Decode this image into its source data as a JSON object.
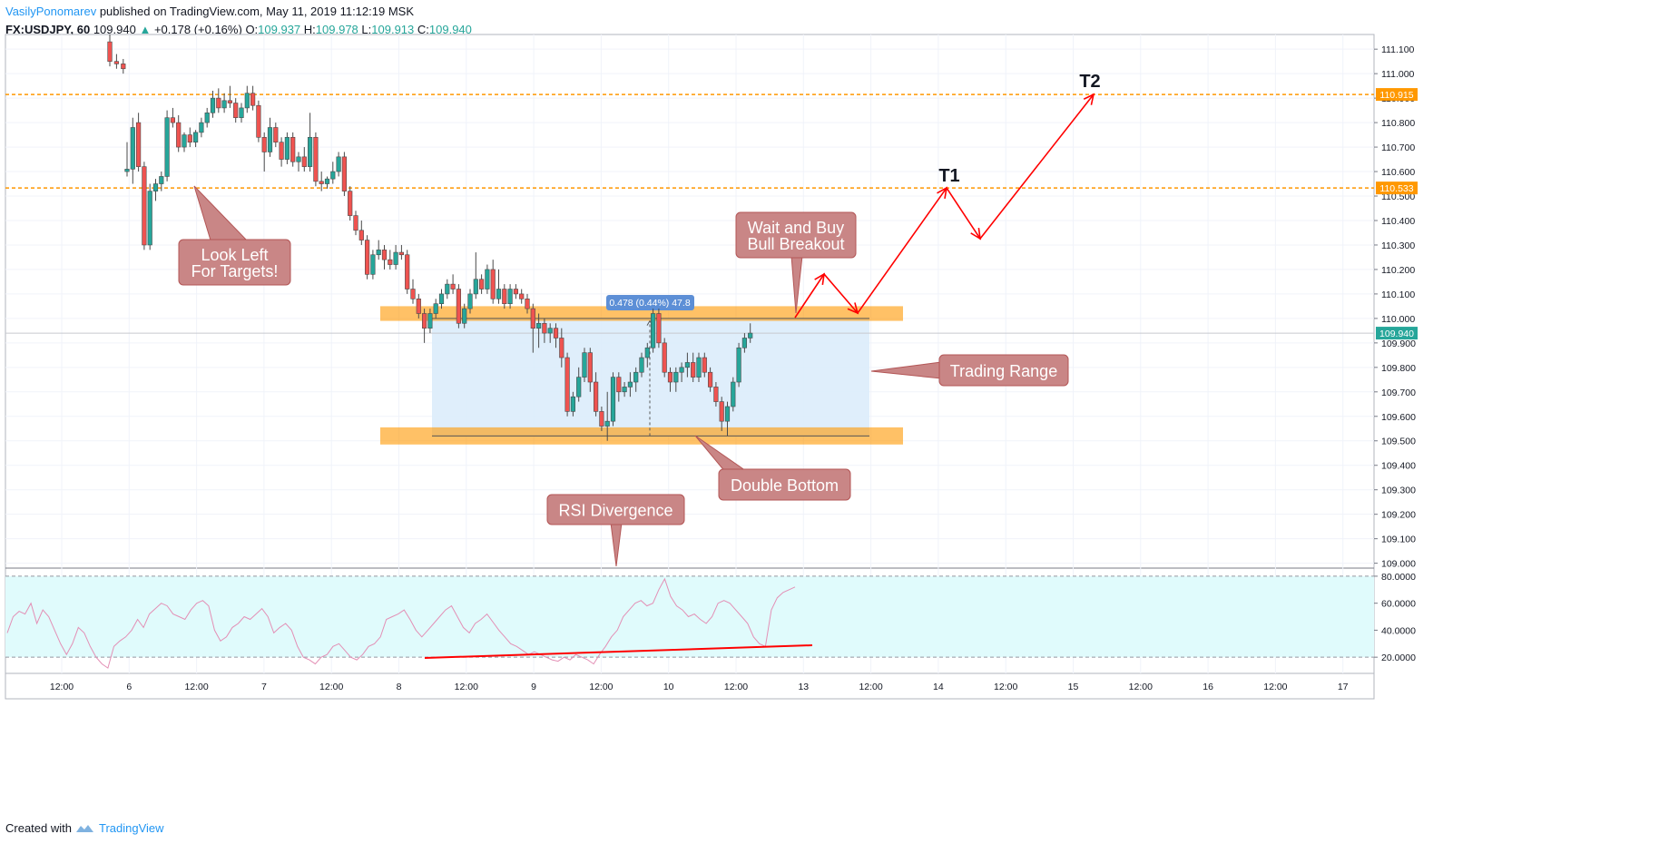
{
  "header": {
    "author": "VasilyPonomarev",
    "published": "published on TradingView.com, May 11, 2019 11:12:19 MSK",
    "symbol": "FX:USDJPY, 60",
    "last": "109.940",
    "up_arrow": "▲",
    "change": "+0.178 (+0.16%)",
    "o_label": "O:",
    "o": "109.937",
    "h_label": "H:",
    "h": "109.978",
    "l_label": "L:",
    "l": "109.913",
    "c_label": "C:",
    "c": "109.940"
  },
  "footer": {
    "created": "Created with",
    "brand": "TradingView"
  },
  "colors": {
    "up": "#26a69a",
    "down": "#ef5350",
    "orange": "#ff9800",
    "annotation_fill": "#c98686",
    "annotation_stroke": "#b35656",
    "range_fill": "#dcecfb",
    "rsi_fill": "#e0fbfc",
    "rsi_line": "#e38fb5",
    "red": "#ff0000"
  },
  "chart_data": {
    "type": "candlestick",
    "x_tick_labels": [
      "12:00",
      "6",
      "12:00",
      "7",
      "12:00",
      "8",
      "12:00",
      "9",
      "12:00",
      "10",
      "12:00",
      "13",
      "12:00",
      "14",
      "12:00",
      "15",
      "12:00",
      "16",
      "12:00",
      "17"
    ],
    "y_ticks": [
      "111.100",
      "111.000",
      "110.900",
      "110.800",
      "110.700",
      "110.600",
      "110.500",
      "110.400",
      "110.300",
      "110.200",
      "110.100",
      "110.000",
      "109.900",
      "109.800",
      "109.700",
      "109.600",
      "109.500",
      "109.400",
      "109.300",
      "109.200",
      "109.100",
      "109.000"
    ],
    "ylim": [
      108.98,
      111.16
    ],
    "price_badges": [
      {
        "label": "110.915",
        "value": 110.915,
        "color": "#ff9800"
      },
      {
        "label": "110.533",
        "value": 110.533,
        "color": "#ff9800"
      },
      {
        "label": "109.940",
        "value": 109.94,
        "color": "#26a69a"
      }
    ],
    "ohlc": [
      [
        111.13,
        111.16,
        111.03,
        111.05
      ],
      [
        111.05,
        111.08,
        111.02,
        111.04
      ],
      [
        111.04,
        111.06,
        111.0,
        111.02
      ],
      [
        110.6,
        110.72,
        110.58,
        110.61
      ],
      [
        110.61,
        110.82,
        110.55,
        110.78
      ],
      [
        110.8,
        110.84,
        110.6,
        110.62
      ],
      [
        110.62,
        110.64,
        110.28,
        110.3
      ],
      [
        110.3,
        110.55,
        110.28,
        110.52
      ],
      [
        110.52,
        110.57,
        110.48,
        110.55
      ],
      [
        110.55,
        110.6,
        110.52,
        110.58
      ],
      [
        110.58,
        110.85,
        110.56,
        110.82
      ],
      [
        110.82,
        110.86,
        110.78,
        110.8
      ],
      [
        110.8,
        110.83,
        110.68,
        110.7
      ],
      [
        110.7,
        110.76,
        110.68,
        110.75
      ],
      [
        110.75,
        110.78,
        110.7,
        110.72
      ],
      [
        110.72,
        110.77,
        110.7,
        110.76
      ],
      [
        110.76,
        110.82,
        110.74,
        110.8
      ],
      [
        110.8,
        110.86,
        110.78,
        110.84
      ],
      [
        110.84,
        110.93,
        110.82,
        110.9
      ],
      [
        110.9,
        110.94,
        110.84,
        110.86
      ],
      [
        110.86,
        110.92,
        110.84,
        110.89
      ],
      [
        110.89,
        110.95,
        110.86,
        110.88
      ],
      [
        110.88,
        110.9,
        110.8,
        110.82
      ],
      [
        110.82,
        110.88,
        110.8,
        110.86
      ],
      [
        110.86,
        110.95,
        110.84,
        110.92
      ],
      [
        110.92,
        110.95,
        110.85,
        110.87
      ],
      [
        110.87,
        110.89,
        110.72,
        110.74
      ],
      [
        110.74,
        110.76,
        110.6,
        110.68
      ],
      [
        110.68,
        110.82,
        110.66,
        110.78
      ],
      [
        110.78,
        110.8,
        110.7,
        110.72
      ],
      [
        110.72,
        110.74,
        110.62,
        110.65
      ],
      [
        110.65,
        110.76,
        110.63,
        110.74
      ],
      [
        110.74,
        110.76,
        110.62,
        110.64
      ],
      [
        110.64,
        110.68,
        110.6,
        110.66
      ],
      [
        110.66,
        110.7,
        110.6,
        110.62
      ],
      [
        110.62,
        110.84,
        110.6,
        110.74
      ],
      [
        110.74,
        110.76,
        110.54,
        110.56
      ],
      [
        110.56,
        110.6,
        110.52,
        110.55
      ],
      [
        110.55,
        110.58,
        110.53,
        110.57
      ],
      [
        110.57,
        110.64,
        110.55,
        110.6
      ],
      [
        110.6,
        110.68,
        110.58,
        110.66
      ],
      [
        110.66,
        110.68,
        110.5,
        110.52
      ],
      [
        110.52,
        110.54,
        110.4,
        110.42
      ],
      [
        110.42,
        110.44,
        110.34,
        110.36
      ],
      [
        110.36,
        110.4,
        110.3,
        110.32
      ],
      [
        110.32,
        110.34,
        110.16,
        110.18
      ],
      [
        110.18,
        110.28,
        110.16,
        110.26
      ],
      [
        110.26,
        110.32,
        110.24,
        110.28
      ],
      [
        110.28,
        110.3,
        110.2,
        110.24
      ],
      [
        110.24,
        110.28,
        110.2,
        110.22
      ],
      [
        110.22,
        110.3,
        110.2,
        110.27
      ],
      [
        110.27,
        110.3,
        110.24,
        110.26
      ],
      [
        110.26,
        110.28,
        110.1,
        110.12
      ],
      [
        110.12,
        110.16,
        110.06,
        110.08
      ],
      [
        110.08,
        110.1,
        110.0,
        110.02
      ],
      [
        110.02,
        110.04,
        109.9,
        109.96
      ],
      [
        109.96,
        110.04,
        109.94,
        110.02
      ],
      [
        110.02,
        110.08,
        110.0,
        110.06
      ],
      [
        110.06,
        110.12,
        110.04,
        110.1
      ],
      [
        110.1,
        110.16,
        110.08,
        110.14
      ],
      [
        110.14,
        110.18,
        110.1,
        110.12
      ],
      [
        110.12,
        110.14,
        109.96,
        109.98
      ],
      [
        109.98,
        110.06,
        109.96,
        110.04
      ],
      [
        110.04,
        110.12,
        110.02,
        110.1
      ],
      [
        110.1,
        110.27,
        110.08,
        110.16
      ],
      [
        110.16,
        110.18,
        110.1,
        110.12
      ],
      [
        110.12,
        110.22,
        110.1,
        110.2
      ],
      [
        110.2,
        110.24,
        110.06,
        110.08
      ],
      [
        110.08,
        110.2,
        110.06,
        110.12
      ],
      [
        110.12,
        110.14,
        110.04,
        110.06
      ],
      [
        110.06,
        110.14,
        110.04,
        110.12
      ],
      [
        110.12,
        110.14,
        110.08,
        110.1
      ],
      [
        110.1,
        110.12,
        110.06,
        110.08
      ],
      [
        110.08,
        110.1,
        110.02,
        110.04
      ],
      [
        110.04,
        110.06,
        109.86,
        109.96
      ],
      [
        109.96,
        110.02,
        109.88,
        109.98
      ],
      [
        109.98,
        110.0,
        109.9,
        109.94
      ],
      [
        109.94,
        109.98,
        109.9,
        109.96
      ],
      [
        109.96,
        109.98,
        109.88,
        109.92
      ],
      [
        109.92,
        109.96,
        109.8,
        109.84
      ],
      [
        109.84,
        109.86,
        109.6,
        109.62
      ],
      [
        109.62,
        109.7,
        109.6,
        109.68
      ],
      [
        109.68,
        109.8,
        109.66,
        109.76
      ],
      [
        109.76,
        109.88,
        109.74,
        109.86
      ],
      [
        109.86,
        109.88,
        109.7,
        109.74
      ],
      [
        109.74,
        109.78,
        109.6,
        109.62
      ],
      [
        109.62,
        109.64,
        109.54,
        109.56
      ],
      [
        109.56,
        109.7,
        109.5,
        109.58
      ],
      [
        109.58,
        109.78,
        109.56,
        109.76
      ],
      [
        109.76,
        109.78,
        109.66,
        109.7
      ],
      [
        109.7,
        109.74,
        109.68,
        109.72
      ],
      [
        109.72,
        109.78,
        109.68,
        109.74
      ],
      [
        109.74,
        109.8,
        109.7,
        109.78
      ],
      [
        109.78,
        109.86,
        109.76,
        109.84
      ],
      [
        109.84,
        109.9,
        109.8,
        109.88
      ],
      [
        109.88,
        110.04,
        109.86,
        110.02
      ],
      [
        110.02,
        110.04,
        109.88,
        109.9
      ],
      [
        109.9,
        109.92,
        109.76,
        109.78
      ],
      [
        109.78,
        109.8,
        109.7,
        109.74
      ],
      [
        109.74,
        109.8,
        109.7,
        109.78
      ],
      [
        109.78,
        109.82,
        109.74,
        109.8
      ],
      [
        109.8,
        109.86,
        109.76,
        109.82
      ],
      [
        109.82,
        109.86,
        109.74,
        109.76
      ],
      [
        109.76,
        109.86,
        109.74,
        109.84
      ],
      [
        109.84,
        109.86,
        109.76,
        109.78
      ],
      [
        109.78,
        109.8,
        109.7,
        109.72
      ],
      [
        109.72,
        109.74,
        109.64,
        109.66
      ],
      [
        109.66,
        109.68,
        109.54,
        109.58
      ],
      [
        109.58,
        109.66,
        109.52,
        109.64
      ],
      [
        109.64,
        109.76,
        109.62,
        109.74
      ],
      [
        109.74,
        109.9,
        109.72,
        109.88
      ],
      [
        109.88,
        109.94,
        109.86,
        109.92
      ],
      [
        109.92,
        109.98,
        109.9,
        109.94
      ]
    ],
    "rsi": {
      "ylim": [
        8,
        86
      ],
      "levels": [
        80,
        20
      ],
      "tick_labels": [
        "80.0000",
        "60.0000",
        "40.0000",
        "20.0000"
      ],
      "tick_values": [
        80,
        60,
        40,
        20
      ],
      "values": [
        38,
        50,
        54,
        52,
        60,
        45,
        55,
        50,
        40,
        30,
        22,
        30,
        42,
        38,
        28,
        20,
        15,
        12,
        28,
        32,
        35,
        40,
        48,
        42,
        52,
        56,
        60,
        58,
        52,
        50,
        48,
        55,
        60,
        62,
        58,
        40,
        32,
        35,
        42,
        45,
        50,
        48,
        52,
        56,
        50,
        38,
        42,
        45,
        40,
        28,
        20,
        18,
        15,
        20,
        22,
        28,
        30,
        25,
        20,
        18,
        22,
        28,
        30,
        35,
        48,
        50,
        52,
        55,
        48,
        40,
        35,
        40,
        45,
        50,
        55,
        58,
        50,
        42,
        38,
        45,
        48,
        52,
        46,
        40,
        35,
        30,
        28,
        25,
        22,
        24,
        22,
        20,
        18,
        17,
        20,
        18,
        22,
        20,
        18,
        15,
        22,
        28,
        35,
        40,
        50,
        55,
        60,
        62,
        58,
        60,
        70,
        78,
        65,
        58,
        55,
        50,
        52,
        48,
        45,
        50,
        60,
        62,
        60,
        55,
        50,
        45,
        35,
        30,
        28,
        55,
        64,
        68,
        70,
        72
      ]
    },
    "annotations": [
      {
        "text": "Look Left\nFor Targets!"
      },
      {
        "text": "Wait and Buy\nBull Breakout"
      },
      {
        "text": "Trading Range"
      },
      {
        "text": "Double Bottom"
      },
      {
        "text": "RSI Divergence"
      }
    ],
    "targets": [
      {
        "text": "T1"
      },
      {
        "text": "T2"
      }
    ],
    "measure_label": "0.478 (0.44%) 47.8"
  }
}
